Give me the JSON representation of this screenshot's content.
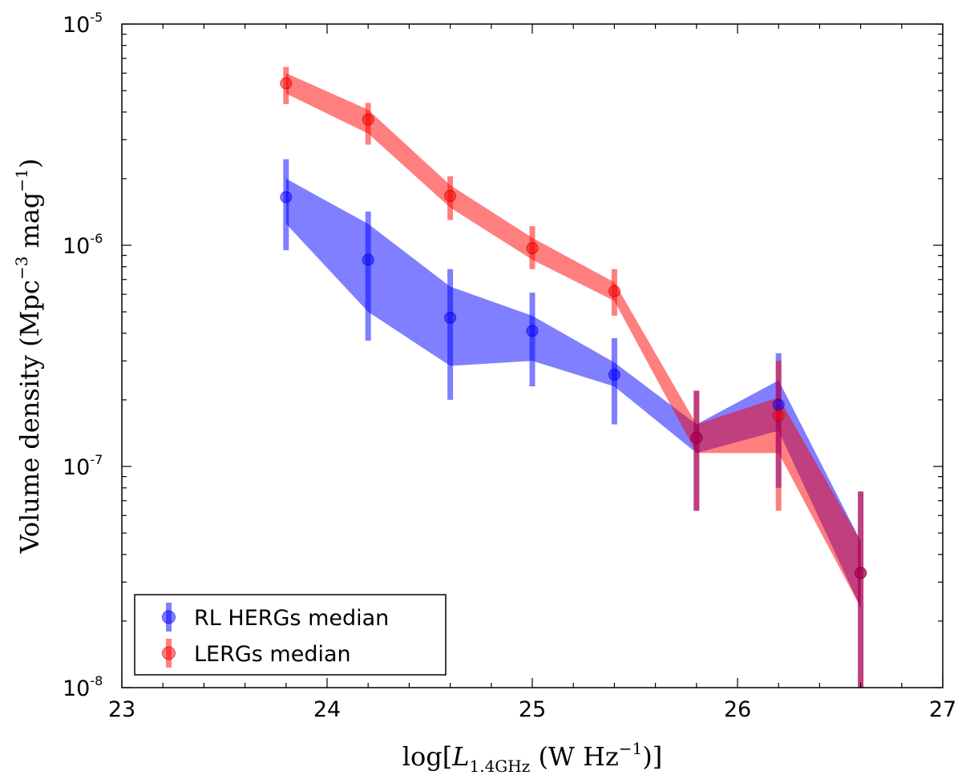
{
  "chart_data": {
    "type": "line",
    "xlabel": {
      "prefix": "log[",
      "var": "L",
      "sub": "1.4GHz",
      "mid": " (W Hz",
      "sup": "−1",
      "suffix": ")]"
    },
    "ylabel": {
      "text": "Volume density (Mpc",
      "sup1": "−3",
      "mid": " mag",
      "sup2": "−1",
      "suffix": ")"
    },
    "xlim": [
      23,
      27
    ],
    "ylim": [
      1e-08,
      1e-05
    ],
    "yscale": "log",
    "x_ticks": [
      "23",
      "24",
      "25",
      "26",
      "27"
    ],
    "y_ticks": [
      {
        "base": "10",
        "exp": "-8"
      },
      {
        "base": "10",
        "exp": "-7"
      },
      {
        "base": "10",
        "exp": "-6"
      },
      {
        "base": "10",
        "exp": "-5"
      }
    ],
    "legend_position": "lower-left",
    "series": [
      {
        "name": "RL HERGs median",
        "color": "#0000ff",
        "x": [
          23.8,
          24.2,
          24.6,
          25.0,
          25.4,
          25.8,
          26.2,
          26.6
        ],
        "y": [
          1.65e-06,
          8.6e-07,
          4.7e-07,
          4.1e-07,
          2.6e-07,
          1.35e-07,
          1.9e-07,
          3.3e-08
        ],
        "band_lo": [
          1.25e-06,
          5e-07,
          2.85e-07,
          3e-07,
          2.3e-07,
          1.15e-07,
          1.45e-07,
          2.3e-08
        ],
        "band_hi": [
          2e-06,
          1.25e-06,
          6.5e-07,
          4.8e-07,
          2.95e-07,
          1.55e-07,
          2.45e-07,
          4.6e-08
        ],
        "err_lo": [
          9.5e-07,
          3.7e-07,
          2e-07,
          2.3e-07,
          1.55e-07,
          6.3e-08,
          8e-08,
          1e-08
        ],
        "err_hi": [
          2.45e-06,
          1.42e-06,
          7.8e-07,
          6.1e-07,
          3.8e-07,
          2.2e-07,
          3.25e-07,
          7.7e-08
        ]
      },
      {
        "name": "LERGs median",
        "color": "#ff0000",
        "x": [
          23.8,
          24.2,
          24.6,
          25.0,
          25.4,
          25.8,
          26.2,
          26.6
        ],
        "y": [
          5.4e-06,
          3.7e-06,
          1.67e-06,
          9.7e-07,
          6.2e-07,
          1.35e-07,
          1.7e-07,
          3.3e-08
        ],
        "band_lo": [
          4.85e-06,
          3.2e-06,
          1.48e-06,
          8.6e-07,
          5.6e-07,
          1.15e-07,
          1.15e-07,
          2.3e-08
        ],
        "band_hi": [
          6e-06,
          4.1e-06,
          1.87e-06,
          1.08e-06,
          6.8e-07,
          1.55e-07,
          2.05e-07,
          4.6e-08
        ],
        "err_lo": [
          4.35e-06,
          2.85e-06,
          1.3e-06,
          7.8e-07,
          4.8e-07,
          6.3e-08,
          6.3e-08,
          1e-08
        ],
        "err_hi": [
          6.4e-06,
          4.4e-06,
          2.05e-06,
          1.22e-06,
          7.8e-07,
          2.2e-07,
          3e-07,
          7.7e-08
        ]
      }
    ]
  }
}
